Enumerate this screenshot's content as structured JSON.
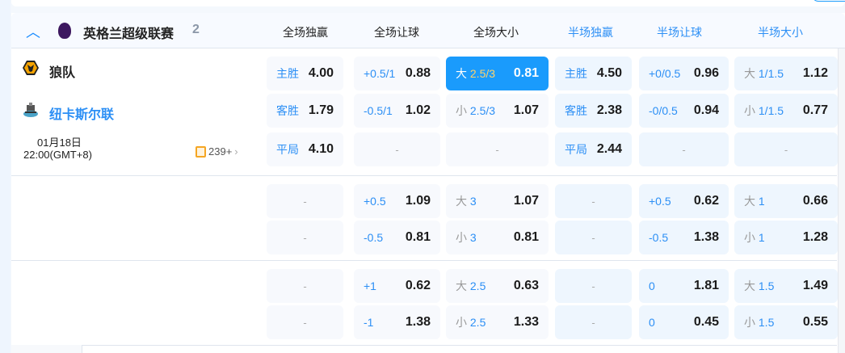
{
  "league": {
    "name": "英格兰超级联赛",
    "count": "2"
  },
  "columns": [
    {
      "label": "全场独赢",
      "half": false
    },
    {
      "label": "全场让球",
      "half": false
    },
    {
      "label": "全场大小",
      "half": false
    },
    {
      "label": "半场独赢",
      "half": true
    },
    {
      "label": "半场让球",
      "half": true
    },
    {
      "label": "半场大小",
      "half": true
    }
  ],
  "match": {
    "home": "狼队",
    "away": "纽卡斯尔联",
    "date": "01月18日",
    "time": "22:00(GMT+8)",
    "more_count": "239+"
  },
  "colors": {
    "accent": "#1a9bfc",
    "selected_line": "#ffd36b"
  },
  "groups": [
    [
      [
        {
          "l": "主胜",
          "v": "4.00"
        },
        {
          "l": "+0.5/1",
          "v": "0.88"
        },
        {
          "p": "大",
          "l": "2.5/3",
          "v": "0.81",
          "sel": true
        },
        {
          "l": "主胜",
          "v": "4.50"
        },
        {
          "l": "+0/0.5",
          "v": "0.96"
        },
        {
          "p": "大",
          "l": "1/1.5",
          "v": "1.12"
        }
      ],
      [
        {
          "l": "客胜",
          "v": "1.79"
        },
        {
          "l": "-0.5/1",
          "v": "1.02"
        },
        {
          "p": "小",
          "l": "2.5/3",
          "v": "1.07"
        },
        {
          "l": "客胜",
          "v": "2.38"
        },
        {
          "l": "-0/0.5",
          "v": "0.94"
        },
        {
          "p": "小",
          "l": "1/1.5",
          "v": "0.77"
        }
      ],
      [
        {
          "l": "平局",
          "v": "4.10"
        },
        {
          "d": "-"
        },
        {
          "d": "-"
        },
        {
          "l": "平局",
          "v": "2.44"
        },
        {
          "d": "-"
        },
        {
          "d": "-"
        }
      ]
    ],
    [
      [
        {
          "d": "-"
        },
        {
          "l": "+0.5",
          "v": "1.09"
        },
        {
          "p": "大",
          "l": "3",
          "v": "1.07"
        },
        {
          "d": "-"
        },
        {
          "l": "+0.5",
          "v": "0.62"
        },
        {
          "p": "大",
          "l": "1",
          "v": "0.66"
        }
      ],
      [
        {
          "d": "-"
        },
        {
          "l": "-0.5",
          "v": "0.81"
        },
        {
          "p": "小",
          "l": "3",
          "v": "0.81"
        },
        {
          "d": "-"
        },
        {
          "l": "-0.5",
          "v": "1.38"
        },
        {
          "p": "小",
          "l": "1",
          "v": "1.28"
        }
      ]
    ],
    [
      [
        {
          "d": "-"
        },
        {
          "l": "+1",
          "v": "0.62"
        },
        {
          "p": "大",
          "l": "2.5",
          "v": "0.63"
        },
        {
          "d": "-"
        },
        {
          "l": "0",
          "v": "1.81"
        },
        {
          "p": "大",
          "l": "1.5",
          "v": "1.49"
        }
      ],
      [
        {
          "d": "-"
        },
        {
          "l": "-1",
          "v": "1.38"
        },
        {
          "p": "小",
          "l": "2.5",
          "v": "1.33"
        },
        {
          "d": "-"
        },
        {
          "l": "0",
          "v": "0.45"
        },
        {
          "p": "小",
          "l": "1.5",
          "v": "0.55"
        }
      ]
    ]
  ]
}
